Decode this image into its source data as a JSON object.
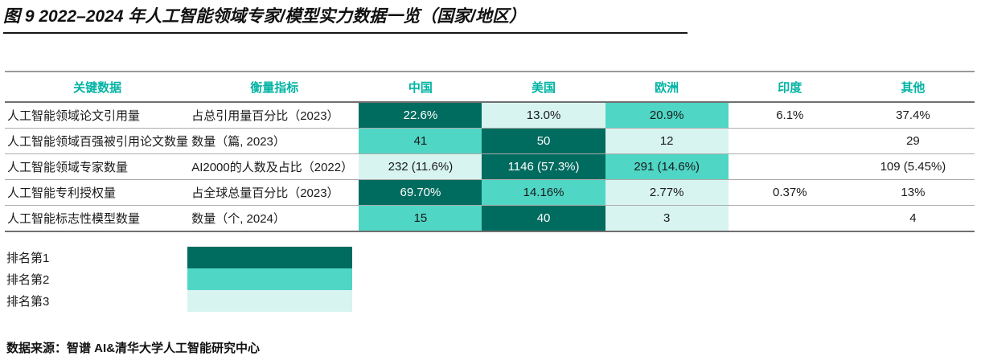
{
  "figure": {
    "title": "图 9 2022–2024 年人工智能领域专家/模型实力数据一览（国家/地区）",
    "source": "数据来源：智谱 AI&清华大学人工智能研究中心"
  },
  "colors": {
    "rank1": "#006B5F",
    "rank2": "#4FD6C5",
    "rank3": "#D7F4F0",
    "header_text": "#00B3A3",
    "title_underline": "#151515"
  },
  "table": {
    "columns": [
      "关键数据",
      "衡量指标",
      "中国",
      "美国",
      "欧洲",
      "印度",
      "其他"
    ],
    "rows": [
      {
        "metric": "人工智能领域论文引用量",
        "indicator": "占总引用量百分比（2023）",
        "values": [
          {
            "text": "22.6%",
            "rank": 1
          },
          {
            "text": "13.0%",
            "rank": 3
          },
          {
            "text": "20.9%",
            "rank": 2
          },
          {
            "text": "6.1%",
            "rank": 0
          },
          {
            "text": "37.4%",
            "rank": 0
          }
        ]
      },
      {
        "metric": "人工智能领域百强被引用论文数量",
        "indicator": "数量（篇, 2023）",
        "values": [
          {
            "text": "41",
            "rank": 2
          },
          {
            "text": "50",
            "rank": 1
          },
          {
            "text": "12",
            "rank": 3
          },
          {
            "text": "",
            "rank": 0
          },
          {
            "text": "29",
            "rank": 0
          }
        ]
      },
      {
        "metric": "人工智能领域专家数量",
        "indicator": "AI2000的人数及占比（2022）",
        "values": [
          {
            "text": "232 (11.6%)",
            "rank": 3
          },
          {
            "text": "1146 (57.3%)",
            "rank": 1
          },
          {
            "text": "291 (14.6%)",
            "rank": 2
          },
          {
            "text": "",
            "rank": 0
          },
          {
            "text": "109 (5.45%)",
            "rank": 0
          }
        ]
      },
      {
        "metric": "人工智能专利授权量",
        "indicator": "占全球总量百分比（2023）",
        "values": [
          {
            "text": "69.70%",
            "rank": 1
          },
          {
            "text": "14.16%",
            "rank": 2
          },
          {
            "text": "2.77%",
            "rank": 3
          },
          {
            "text": "0.37%",
            "rank": 0
          },
          {
            "text": "13%",
            "rank": 0
          }
        ]
      },
      {
        "metric": "人工智能标志性模型数量",
        "indicator": "数量（个, 2024）",
        "values": [
          {
            "text": "15",
            "rank": 2
          },
          {
            "text": "40",
            "rank": 1
          },
          {
            "text": "3",
            "rank": 3
          },
          {
            "text": "",
            "rank": 0
          },
          {
            "text": "4",
            "rank": 0
          }
        ]
      }
    ]
  },
  "legend": {
    "items": [
      {
        "label": "排名第1",
        "rank": 1,
        "color": "#006B5F"
      },
      {
        "label": "排名第2",
        "rank": 2,
        "color": "#4FD6C5"
      },
      {
        "label": "排名第3",
        "rank": 3,
        "color": "#D7F4F0"
      }
    ]
  },
  "chart_data": {
    "type": "table",
    "title": "图 9 2022–2024 年人工智能领域专家/模型实力数据一览（国家/地区）",
    "columns": [
      "关键数据",
      "衡量指标",
      "中国",
      "美国",
      "欧洲",
      "印度",
      "其他"
    ],
    "rows": [
      [
        "人工智能领域论文引用量",
        "占总引用量百分比（2023）",
        "22.6%",
        "13.0%",
        "20.9%",
        "6.1%",
        "37.4%"
      ],
      [
        "人工智能领域百强被引用论文数量",
        "数量（篇, 2023）",
        "41",
        "50",
        "12",
        "",
        "29"
      ],
      [
        "人工智能领域专家数量",
        "AI2000的人数及占比（2022）",
        "232 (11.6%)",
        "1146 (57.3%)",
        "291 (14.6%)",
        "",
        "109 (5.45%)"
      ],
      [
        "人工智能专利授权量",
        "占全球总量百分比（2023）",
        "69.70%",
        "14.16%",
        "2.77%",
        "0.37%",
        "13%"
      ],
      [
        "人工智能标志性模型数量",
        "数量（个, 2024）",
        "15",
        "40",
        "3",
        "",
        "4"
      ]
    ],
    "cell_rank_highlights": {
      "legend": {
        "1": "排名第1",
        "2": "排名第2",
        "3": "排名第3"
      },
      "ranks_by_row": [
        {
          "中国": 1,
          "美国": 3,
          "欧洲": 2
        },
        {
          "中国": 2,
          "美国": 1,
          "欧洲": 3
        },
        {
          "中国": 3,
          "美国": 1,
          "欧洲": 2
        },
        {
          "中国": 1,
          "美国": 2,
          "欧洲": 3
        },
        {
          "中国": 2,
          "美国": 1,
          "欧洲": 3
        }
      ]
    },
    "source": "数据来源：智谱 AI&清华大学人工智能研究中心"
  }
}
